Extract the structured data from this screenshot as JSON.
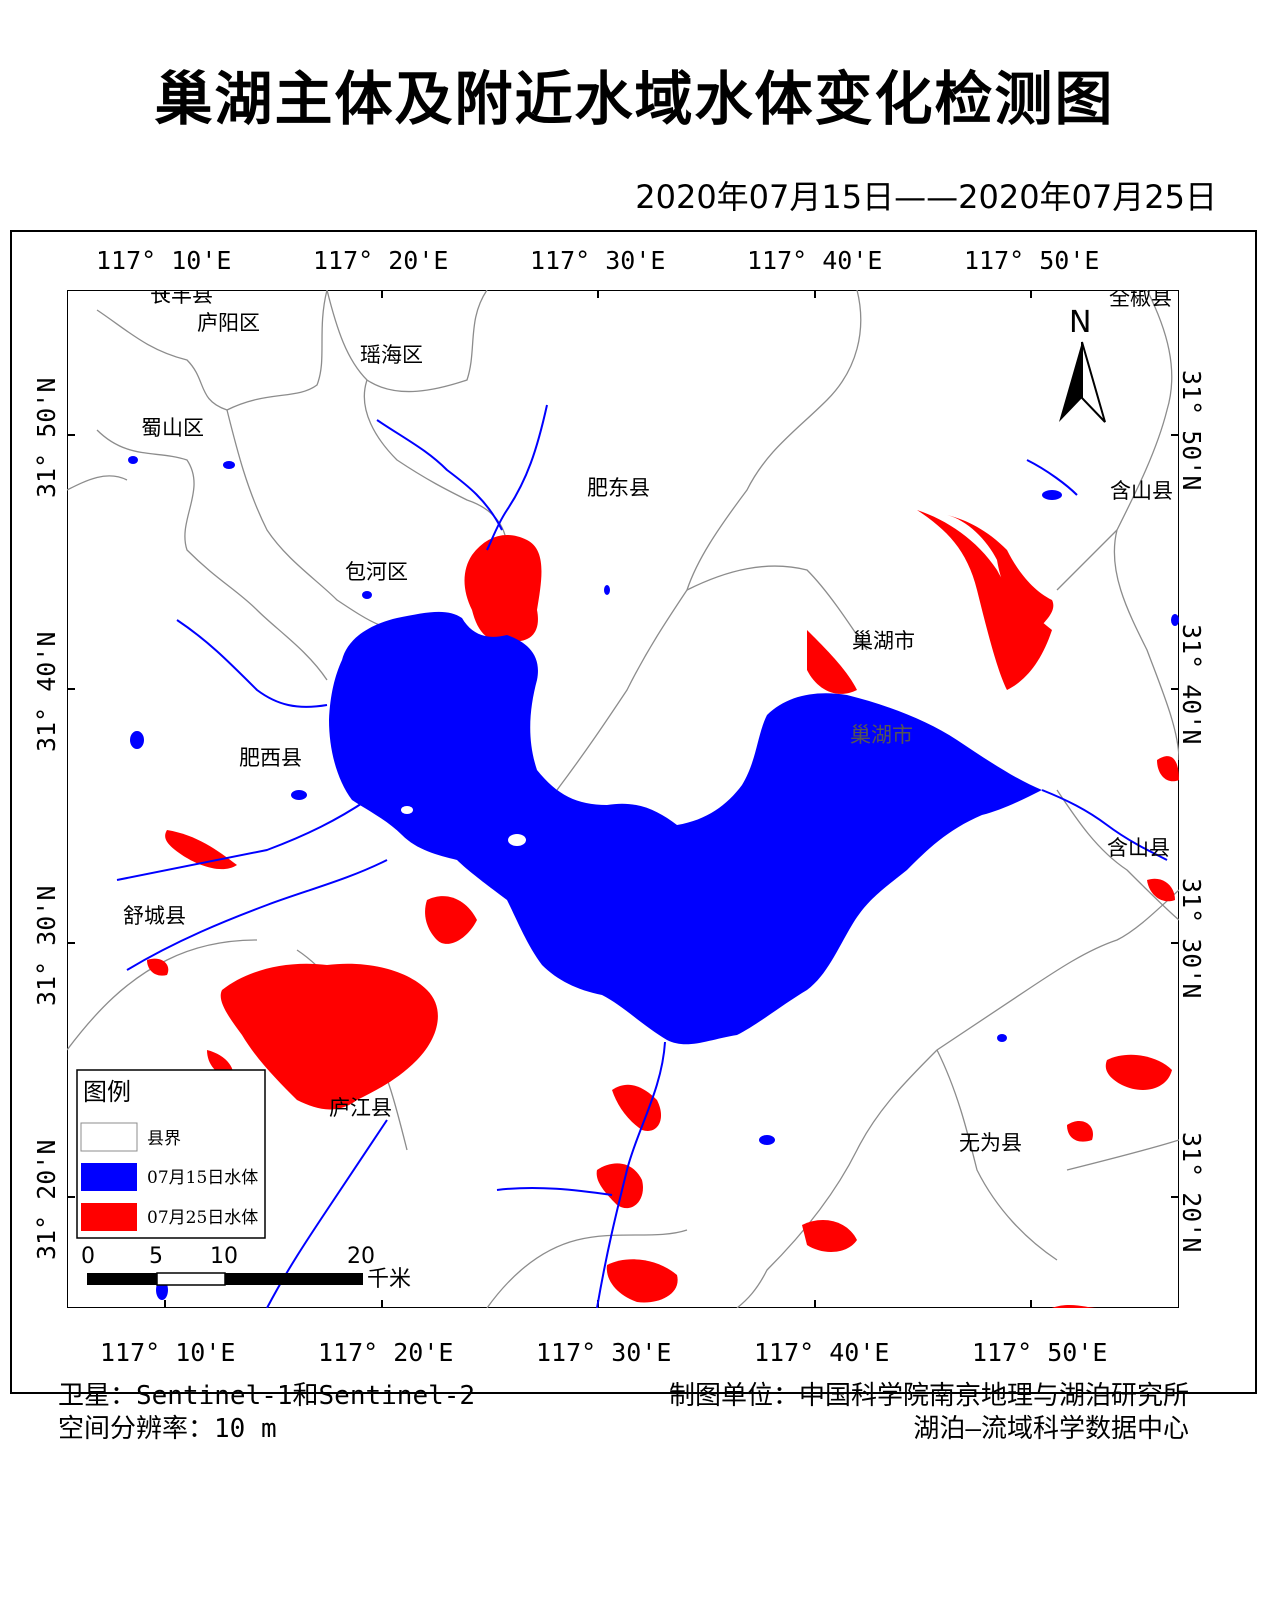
{
  "title": "巢湖主体及附近水域水体变化检测图",
  "date_range": "2020年07月15日——2020年07月25日",
  "axes": {
    "top_lon": [
      "117° 10'E",
      "117° 20'E",
      "117° 30'E",
      "117° 40'E",
      "117° 50'E"
    ],
    "bottom_lon": [
      "117° 10'E",
      "117° 20'E",
      "117° 30'E",
      "117° 40'E",
      "117° 50'E"
    ],
    "left_lat": [
      "31° 50'N",
      "31° 40'N",
      "31° 30'N",
      "31° 20'N"
    ],
    "right_lat": [
      "31° 50'N",
      "31° 40'N",
      "31° 30'N",
      "31° 20'N"
    ]
  },
  "places": [
    "长丰县",
    "庐阳区",
    "瑶海区",
    "蜀山区",
    "肥东县",
    "全椒县",
    "含山县",
    "包河区",
    "巢湖市",
    "巢湖市",
    "肥西县",
    "含山县",
    "舒城县",
    "庐江县",
    "无为县"
  ],
  "north_arrow": "N",
  "legend": {
    "title": "图例",
    "items": [
      {
        "label": "县界",
        "color": "#ffffff"
      },
      {
        "label": "07月15日水体",
        "color": "#0000ff"
      },
      {
        "label": "07月25日水体",
        "color": "#ff0000"
      }
    ]
  },
  "scale_bar": {
    "ticks": [
      "0",
      "5",
      "10",
      "20"
    ],
    "unit": "千米"
  },
  "colors": {
    "water_0715": "#0000ff",
    "water_0725": "#ff0000",
    "boundary": "#8c8c8c"
  },
  "footer": {
    "satellite": "卫星：Sentinel-1和Sentinel-2",
    "resolution": "空间分辨率：10 m",
    "producer": "制图单位：中国科学院南京地理与湖泊研究所",
    "center": "湖泊—流域科学数据中心"
  }
}
